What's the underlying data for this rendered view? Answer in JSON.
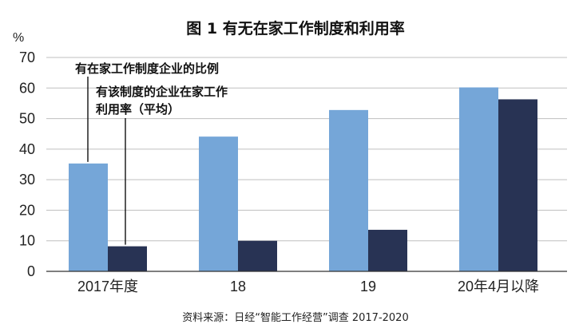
{
  "chart_data": {
    "type": "bar",
    "title": "图 1 有无在家工作制度和利用率",
    "y_unit": "%",
    "ylim": [
      0,
      70
    ],
    "yticks": [
      "0",
      "10",
      "20",
      "30",
      "40",
      "50",
      "60",
      "70"
    ],
    "categories": [
      "2017年度",
      "18",
      "19",
      "20年4月以降"
    ],
    "series": [
      {
        "name": "有在家工作制度企业的比例",
        "values": [
          35.3,
          44.1,
          52.8,
          60.2
        ],
        "color": "#75a6d8"
      },
      {
        "name": "有该制度的企业在家工作利用率（平均）",
        "values": [
          8.2,
          10.0,
          13.6,
          56.3
        ],
        "color": "#283354"
      }
    ],
    "annotations": {
      "series1_label": "有在家工作制度企业的比例",
      "series2_label_line1": "有该制度的企业在家工作",
      "series2_label_line2": "利用率（平均）"
    },
    "grid": true,
    "source": "资料来源：日经“智能工作经营”调查 2017-2020"
  }
}
